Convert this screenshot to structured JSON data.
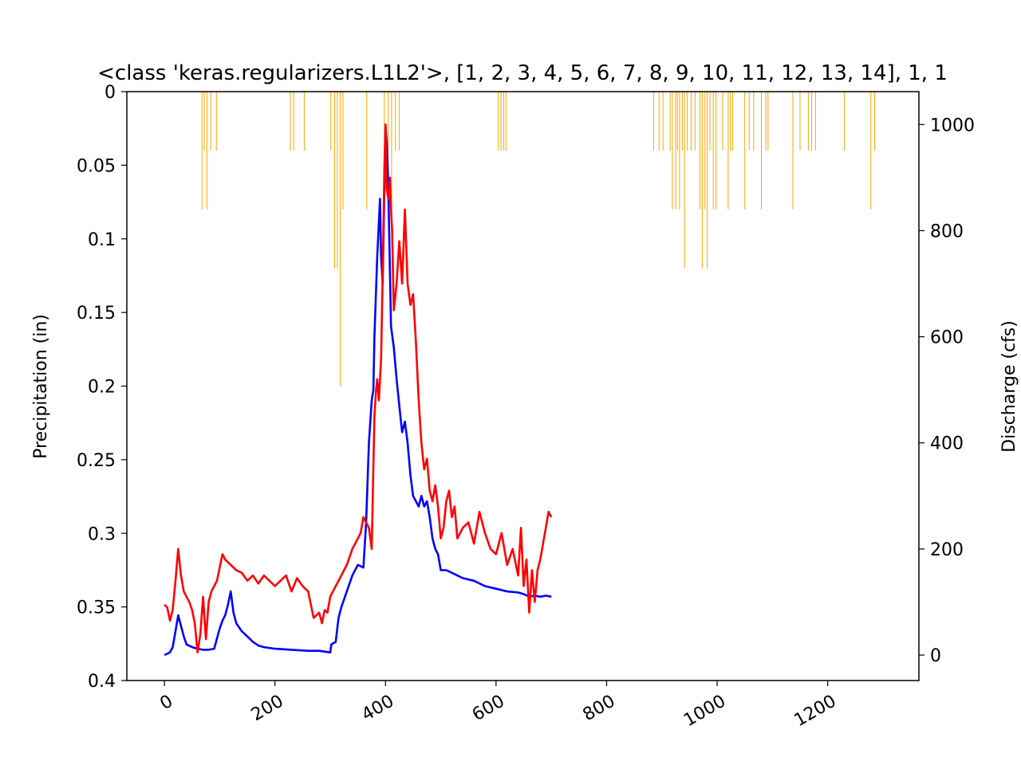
{
  "chart_data": {
    "type": "line",
    "title": "<class 'keras.regularizers.L1L2'>, [1, 2, 3, 4, 5, 6, 7, 8, 9, 10, 11, 12, 13, 14], 1, 1",
    "xlabel": "",
    "ylabel_left": "Precipitation (in)",
    "ylabel_right": "Discharge (cfs)",
    "xlim": [
      -68,
      1365
    ],
    "x_ticks": [
      0,
      200,
      400,
      600,
      800,
      1000,
      1200
    ],
    "x_tick_labels": [
      "0",
      "200",
      "400",
      "600",
      "800",
      "1000",
      "1200"
    ],
    "left_axis": {
      "ylim": [
        0,
        0.4
      ],
      "inverted": true,
      "ticks": [
        0,
        0.05,
        0.1,
        0.15,
        0.2,
        0.25,
        0.3,
        0.35,
        0.4
      ],
      "tick_labels": [
        "0",
        "0.05",
        "0.1",
        "0.15",
        "0.2",
        "0.25",
        "0.3",
        "0.35",
        "0.4"
      ]
    },
    "right_axis": {
      "ylim": [
        -48,
        1062
      ],
      "ticks": [
        0,
        200,
        400,
        600,
        800,
        1000
      ],
      "tick_labels": [
        "0",
        "200",
        "400",
        "600",
        "800",
        "1000"
      ]
    },
    "grid": false,
    "precipitation_bars": {
      "color": "#ffa500",
      "axis": "left",
      "x": [
        68,
        72,
        77,
        84,
        94,
        228,
        234,
        253,
        301,
        308,
        313,
        318,
        323,
        366,
        398,
        405,
        411,
        418,
        425,
        604,
        609,
        614,
        618,
        885,
        895,
        902,
        915,
        919,
        925,
        928,
        932,
        937,
        941,
        946,
        953,
        960,
        969,
        973,
        978,
        982,
        987,
        993,
        998,
        1010,
        1020,
        1024,
        1028,
        1050,
        1058,
        1066,
        1080,
        1088,
        1092,
        1137,
        1150,
        1165,
        1171,
        1178,
        1230,
        1278,
        1285
      ],
      "values": [
        0.08,
        0.04,
        0.08,
        0.04,
        0.04,
        0.04,
        0.04,
        0.04,
        0.04,
        0.12,
        0.12,
        0.2,
        0.08,
        0.08,
        0.04,
        0.04,
        0.08,
        0.04,
        0.04,
        0.04,
        0.04,
        0.04,
        0.04,
        0.04,
        0.04,
        0.04,
        0.04,
        0.08,
        0.08,
        0.04,
        0.08,
        0.04,
        0.12,
        0.04,
        0.04,
        0.04,
        0.08,
        0.12,
        0.08,
        0.12,
        0.04,
        0.08,
        0.08,
        0.04,
        0.08,
        0.04,
        0.04,
        0.08,
        0.04,
        0.04,
        0.08,
        0.04,
        0.04,
        0.08,
        0.04,
        0.04,
        0.04,
        0.04,
        0.04,
        0.08,
        0.04
      ]
    },
    "series": [
      {
        "color": "#0000ff",
        "axis": "right",
        "x": [
          0,
          10,
          15,
          20,
          25,
          30,
          35,
          40,
          50,
          60,
          70,
          80,
          90,
          100,
          105,
          110,
          115,
          120,
          125,
          130,
          140,
          150,
          160,
          170,
          180,
          200,
          230,
          260,
          280,
          300,
          302,
          305,
          310,
          315,
          320,
          330,
          340,
          350,
          360,
          365,
          370,
          375,
          378,
          380,
          385,
          390,
          392,
          395,
          398,
          400,
          403,
          405,
          410,
          415,
          420,
          425,
          430,
          435,
          440,
          445,
          450,
          455,
          460,
          465,
          470,
          475,
          480,
          485,
          490,
          495,
          500,
          510,
          520,
          530,
          540,
          560,
          580,
          600,
          620,
          640,
          650,
          660,
          670,
          680,
          690,
          700
        ],
        "values": [
          0,
          5,
          15,
          45,
          75,
          55,
          35,
          20,
          15,
          12,
          10,
          10,
          12,
          50,
          65,
          75,
          95,
          120,
          80,
          60,
          45,
          35,
          25,
          18,
          15,
          12,
          10,
          8,
          8,
          5,
          20,
          22,
          25,
          70,
          90,
          120,
          150,
          170,
          165,
          250,
          400,
          480,
          500,
          600,
          750,
          860,
          750,
          700,
          880,
          1000,
          950,
          880,
          620,
          580,
          520,
          470,
          420,
          440,
          400,
          340,
          300,
          290,
          280,
          300,
          280,
          290,
          260,
          220,
          200,
          190,
          160,
          160,
          155,
          150,
          145,
          140,
          130,
          125,
          120,
          118,
          115,
          110,
          112,
          110,
          112,
          110
        ],
        "name": ""
      },
      {
        "color": "#ff0000",
        "axis": "right",
        "x": [
          0,
          5,
          10,
          15,
          20,
          25,
          28,
          30,
          35,
          40,
          45,
          50,
          55,
          60,
          65,
          70,
          75,
          80,
          85,
          90,
          95,
          100,
          105,
          110,
          115,
          120,
          130,
          140,
          150,
          160,
          170,
          180,
          190,
          200,
          210,
          220,
          230,
          240,
          250,
          260,
          270,
          280,
          285,
          290,
          295,
          300,
          310,
          320,
          330,
          340,
          350,
          355,
          360,
          365,
          370,
          375,
          380,
          383,
          385,
          388,
          392,
          395,
          398,
          400,
          402,
          405,
          408,
          410,
          412,
          415,
          420,
          425,
          430,
          435,
          440,
          445,
          450,
          455,
          460,
          465,
          470,
          475,
          480,
          485,
          490,
          495,
          500,
          505,
          510,
          515,
          520,
          525,
          530,
          540,
          550,
          560,
          570,
          580,
          590,
          600,
          610,
          620,
          630,
          640,
          645,
          650,
          655,
          660,
          665,
          670,
          675,
          680,
          685,
          690,
          695,
          700
        ],
        "values": [
          95,
          90,
          65,
          85,
          140,
          200,
          170,
          150,
          120,
          110,
          100,
          85,
          60,
          5,
          40,
          110,
          30,
          100,
          120,
          130,
          140,
          165,
          190,
          180,
          175,
          170,
          160,
          155,
          140,
          150,
          135,
          150,
          140,
          130,
          140,
          150,
          120,
          145,
          130,
          120,
          70,
          80,
          60,
          85,
          80,
          110,
          130,
          150,
          170,
          200,
          220,
          230,
          260,
          250,
          240,
          200,
          450,
          500,
          520,
          480,
          560,
          720,
          920,
          1000,
          880,
          860,
          900,
          840,
          800,
          650,
          700,
          780,
          700,
          840,
          700,
          660,
          680,
          590,
          480,
          400,
          350,
          370,
          310,
          290,
          320,
          280,
          220,
          240,
          290,
          310,
          260,
          280,
          220,
          240,
          250,
          210,
          270,
          230,
          200,
          190,
          230,
          170,
          200,
          150,
          240,
          130,
          180,
          80,
          160,
          100,
          160,
          180,
          210,
          240,
          270,
          260
        ]
      }
    ]
  }
}
